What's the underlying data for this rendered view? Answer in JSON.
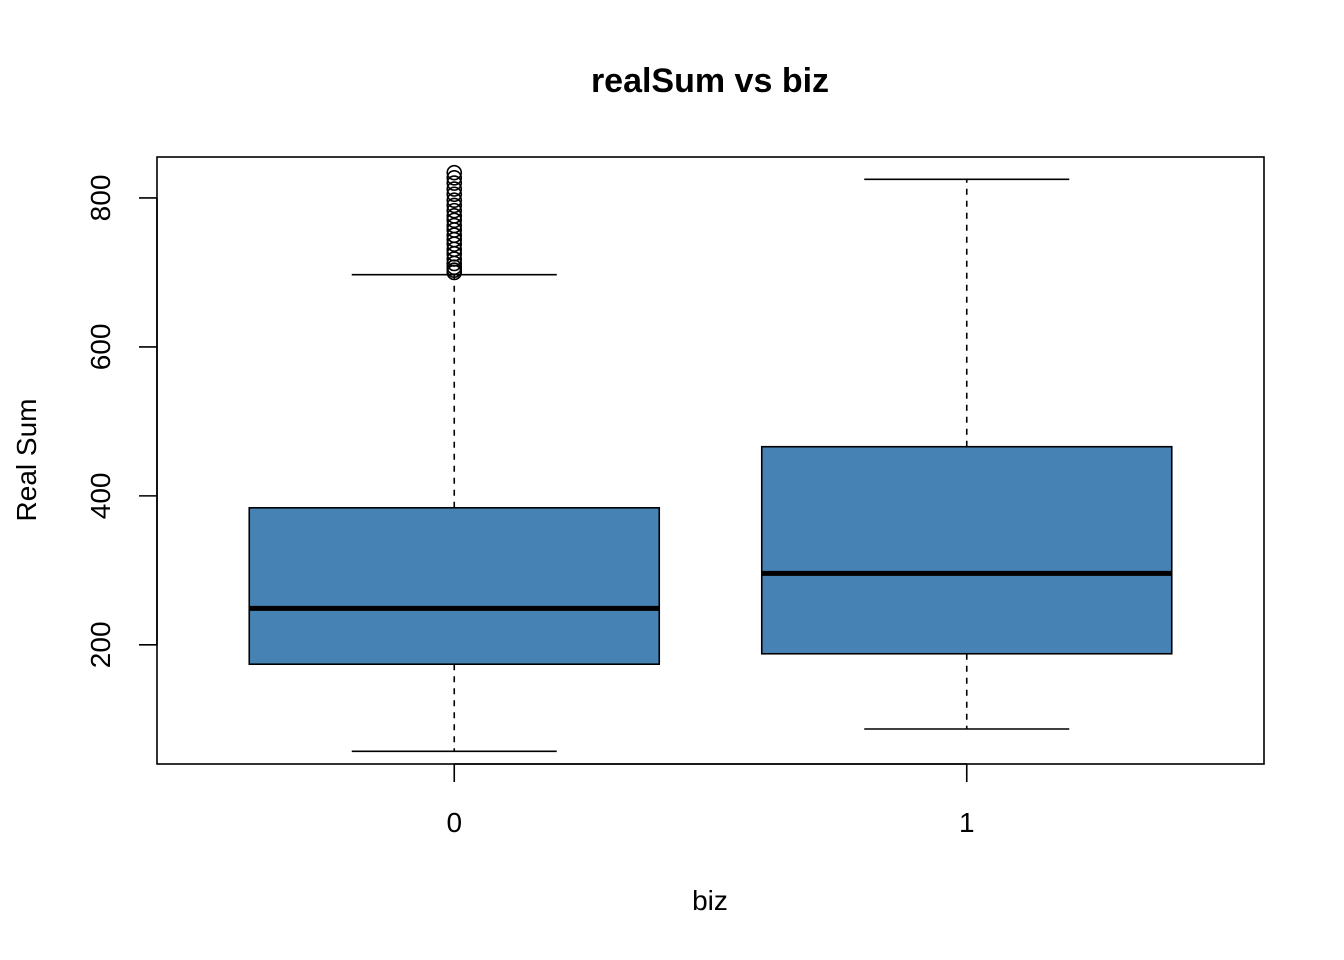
{
  "chart_data": {
    "type": "box",
    "title": "realSum vs biz",
    "xlabel": "biz",
    "ylabel": "Real Sum",
    "categories": [
      "0",
      "1"
    ],
    "yticks": [
      200,
      400,
      600,
      800
    ],
    "ylim": [
      40,
      855
    ],
    "grid": false,
    "legend": "none",
    "fill_color": "#4682B4",
    "boxes": [
      {
        "category": "0",
        "whisker_low": 57,
        "q1": 174,
        "median": 249,
        "q3": 384,
        "whisker_high": 697,
        "outliers": [
          700,
          703,
          707,
          712,
          718,
          725,
          731,
          738,
          744,
          750,
          757,
          763,
          770,
          776,
          783,
          790,
          797,
          805,
          812,
          820,
          827,
          834
        ]
      },
      {
        "category": "1",
        "whisker_low": 87,
        "q1": 188,
        "median": 296,
        "q3": 466,
        "whisker_high": 825,
        "outliers": []
      }
    ]
  }
}
